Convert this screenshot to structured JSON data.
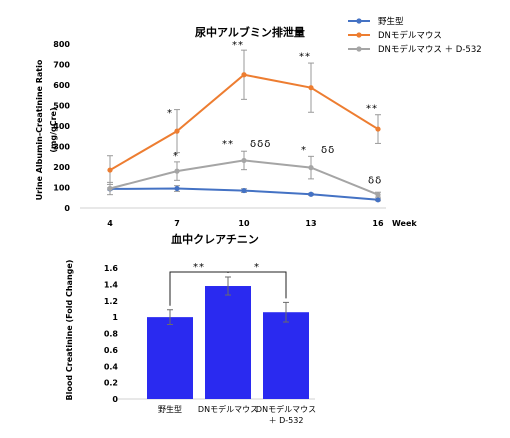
{
  "chart_data": [
    {
      "type": "line",
      "title": "尿中アルブミン排泄量",
      "ylabel": [
        "Urine Albumin-Creatinine Ratio",
        "(mg/gCre)"
      ],
      "xlabel": "Week",
      "x": [
        4,
        7,
        10,
        13,
        16
      ],
      "ylim": [
        0,
        800
      ],
      "yticks": [
        0,
        100,
        200,
        300,
        400,
        500,
        600,
        700,
        800
      ],
      "grid": false,
      "legend_position": "top-right",
      "series": [
        {
          "name": "野生型",
          "color": "#4472c4",
          "values": [
            93,
            95,
            85,
            67,
            40
          ],
          "errors": [
            5,
            14,
            9,
            5,
            5
          ]
        },
        {
          "name": "DNモデルマウス",
          "color": "#ed7d31",
          "values": [
            185,
            375,
            650,
            587,
            385
          ],
          "errors": [
            70,
            105,
            120,
            120,
            70
          ]
        },
        {
          "name": "DNモデルマウス ＋ D-532",
          "color": "#a5a5a5",
          "values": [
            95,
            180,
            232,
            197,
            65
          ],
          "errors": [
            30,
            45,
            45,
            55,
            12
          ]
        }
      ],
      "annotations": [
        {
          "x": 7,
          "y": 450,
          "text": "*"
        },
        {
          "x": 10,
          "y": 780,
          "text": "**"
        },
        {
          "x": 13,
          "y": 725,
          "text": "**"
        },
        {
          "x": 16,
          "y": 470,
          "text": "**"
        },
        {
          "x": 7,
          "y": 240,
          "text": "*"
        },
        {
          "x": 10,
          "y": 298,
          "text": "**"
        },
        {
          "x": 10,
          "y": 298,
          "text": "δδδ"
        },
        {
          "x": 13,
          "y": 268,
          "text": "*"
        },
        {
          "x": 13,
          "y": 268,
          "text": "δδ"
        },
        {
          "x": 16,
          "y": 120,
          "text": "δδ"
        }
      ]
    },
    {
      "type": "bar",
      "title": "血中クレアチニン",
      "ylabel": "Blood Creatinine (Fold Change)",
      "categories": [
        [
          "野生型"
        ],
        [
          "DNモデルマウス"
        ],
        [
          "DNモデルマウス",
          "＋ D-532"
        ]
      ],
      "values": [
        1.0,
        1.38,
        1.06
      ],
      "errors": [
        0.09,
        0.11,
        0.12
      ],
      "color": "#2a2af0",
      "ylim": [
        0,
        1.6
      ],
      "yticks": [
        0,
        0.2,
        0.4,
        0.6,
        0.8,
        1,
        1.2,
        1.4,
        1.6
      ],
      "ytick_labels": [
        "0",
        "0.2",
        "0.4",
        "0.6",
        "0.8",
        "1",
        "1.2",
        "1.4",
        "1.6"
      ],
      "grid": false,
      "significance": [
        {
          "from": 0,
          "to": 1,
          "text": "**"
        },
        {
          "from": 1,
          "to": 2,
          "text": "*"
        }
      ]
    }
  ]
}
